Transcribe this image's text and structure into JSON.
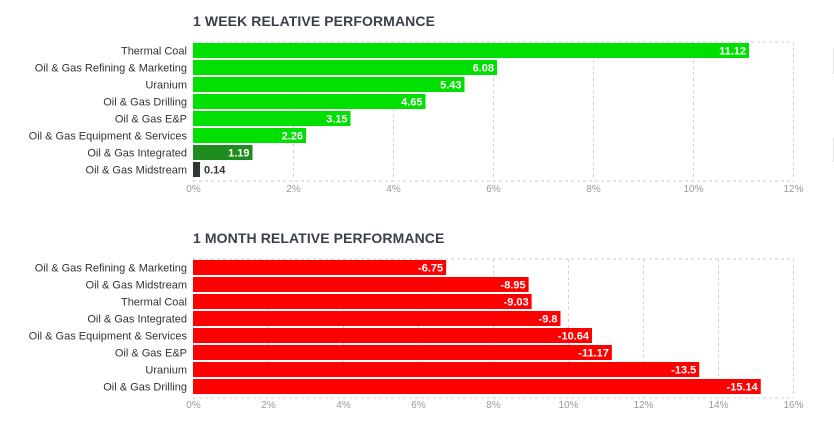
{
  "colors": {
    "positive": "#00e000",
    "positive_low": "#1e8c1e",
    "neutral": "#2f3a2f",
    "negative": "#ff0000",
    "grid": "#d0d0d0",
    "axis_text": "#9a9a9a",
    "label_text": "#333333",
    "title_text": "#3a3f4b"
  },
  "chart_data": [
    {
      "type": "bar",
      "orientation": "horizontal",
      "title": "1 WEEK RELATIVE PERFORMANCE",
      "categories": [
        "Thermal Coal",
        "Oil & Gas Refining & Marketing",
        "Uranium",
        "Oil & Gas Drilling",
        "Oil & Gas E&P",
        "Oil & Gas Equipment & Services",
        "Oil & Gas Integrated",
        "Oil & Gas Midstream"
      ],
      "values": [
        11.12,
        6.08,
        5.43,
        4.65,
        3.15,
        2.26,
        1.19,
        0.14
      ],
      "value_labels": [
        "11.12",
        "6.08",
        "5.43",
        "4.65",
        "3.15",
        "2.26",
        "1.19",
        "0.14"
      ],
      "bar_colors": [
        "#00e000",
        "#00e000",
        "#00e000",
        "#00e000",
        "#00e000",
        "#00e000",
        "#1e8c1e",
        "#2f3a2f"
      ],
      "xlim": [
        0,
        12
      ],
      "xticks": [
        "0%",
        "2%",
        "4%",
        "6%",
        "8%",
        "10%",
        "12%"
      ],
      "grid": true
    },
    {
      "type": "bar",
      "orientation": "horizontal",
      "title": "1 MONTH RELATIVE PERFORMANCE",
      "categories": [
        "Oil & Gas Refining & Marketing",
        "Oil & Gas Midstream",
        "Thermal Coal",
        "Oil & Gas Integrated",
        "Oil & Gas Equipment & Services",
        "Oil & Gas E&P",
        "Uranium",
        "Oil & Gas Drilling"
      ],
      "values": [
        -6.75,
        -8.95,
        -9.03,
        -9.8,
        -10.64,
        -11.17,
        -13.5,
        -15.14
      ],
      "value_labels": [
        "-6.75",
        "-8.95",
        "-9.03",
        "-9.8",
        "-10.64",
        "-11.17",
        "-13.5",
        "-15.14"
      ],
      "bar_colors": [
        "#ff0000",
        "#ff0000",
        "#ff0000",
        "#ff0000",
        "#ff0000",
        "#ff0000",
        "#ff0000",
        "#ff0000"
      ],
      "xlim": [
        0,
        16
      ],
      "xticks": [
        "0%",
        "2%",
        "4%",
        "6%",
        "8%",
        "10%",
        "12%",
        "14%",
        "16%"
      ],
      "grid": true
    }
  ]
}
